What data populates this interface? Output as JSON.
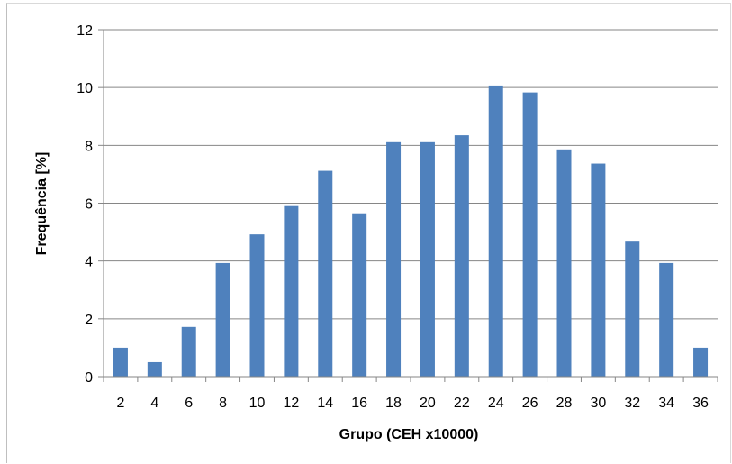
{
  "chart_data": {
    "type": "bar",
    "categories": [
      "2",
      "4",
      "6",
      "8",
      "10",
      "12",
      "14",
      "16",
      "18",
      "20",
      "22",
      "24",
      "26",
      "28",
      "30",
      "32",
      "34",
      "36"
    ],
    "series": [
      {
        "values": [
          1.0,
          0.5,
          1.72,
          3.93,
          4.92,
          5.9,
          7.12,
          5.65,
          8.11,
          8.11,
          8.35,
          10.07,
          9.83,
          7.86,
          7.37,
          4.67,
          3.93,
          1.0
        ]
      }
    ],
    "xlabel": "Grupo (CEH x10000)",
    "ylabel": "Frequência [%]",
    "ylim": [
      0,
      12
    ],
    "yticks": [
      "0",
      "2",
      "4",
      "6",
      "8",
      "10",
      "12"
    ],
    "grid": true,
    "legend": "none",
    "colors": {
      "bar": "#4f81bd",
      "grid": "#868686",
      "axis": "#868686"
    }
  }
}
